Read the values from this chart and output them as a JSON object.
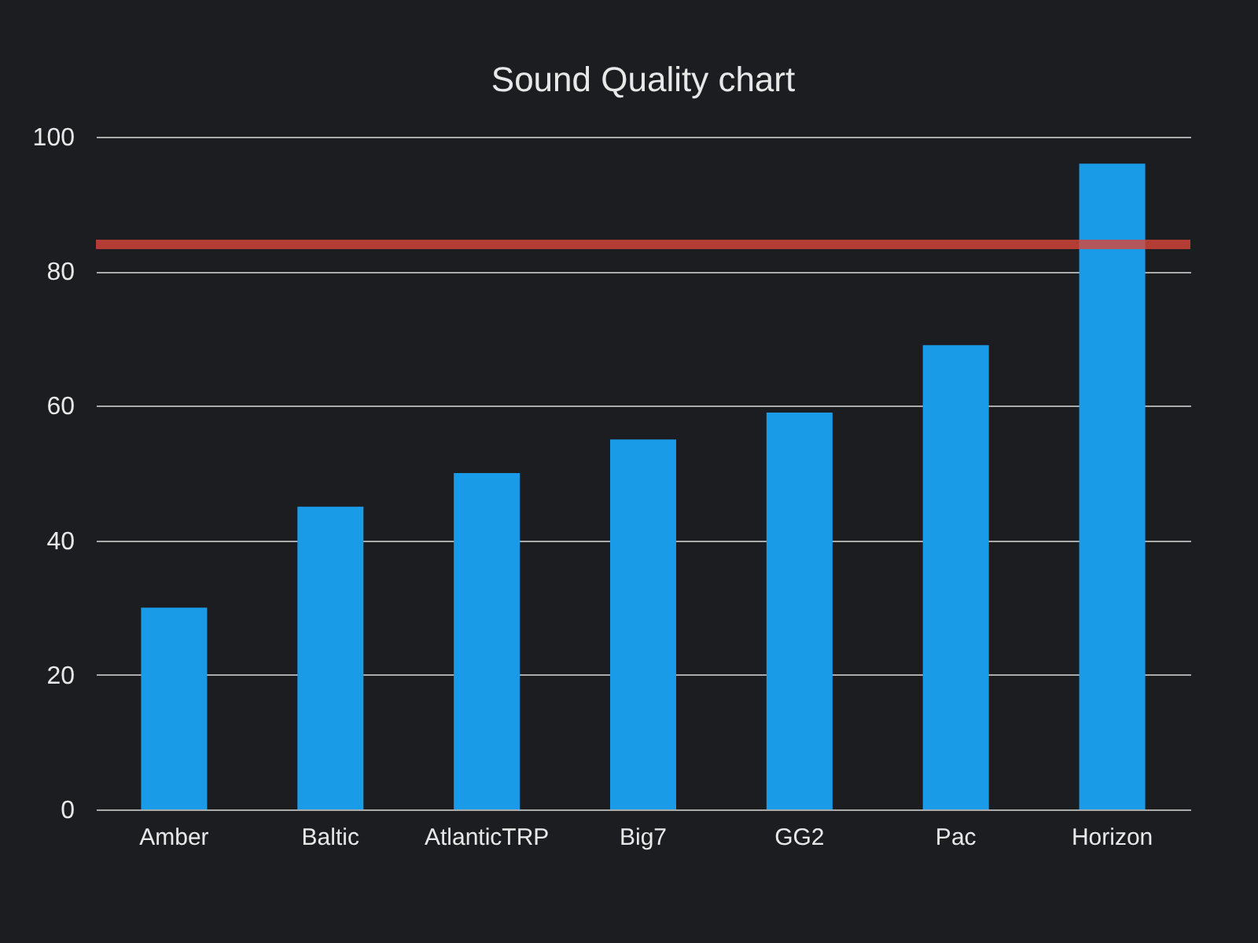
{
  "chart_data": {
    "type": "bar",
    "title": "Sound Quality chart",
    "categories": [
      "Amber",
      "Baltic",
      "AtlanticTRP",
      "Big7",
      "GG2",
      "Pac",
      "Horizon"
    ],
    "values": [
      30,
      45,
      50,
      55,
      59,
      69,
      96
    ],
    "color": "#1a9be8",
    "ylim": [
      0,
      100
    ],
    "yticks": [
      0,
      20,
      40,
      60,
      80,
      100
    ],
    "grid": "y",
    "ref_lines": [
      {
        "axis": "y",
        "value": 84,
        "color": "#d9463a"
      }
    ]
  }
}
